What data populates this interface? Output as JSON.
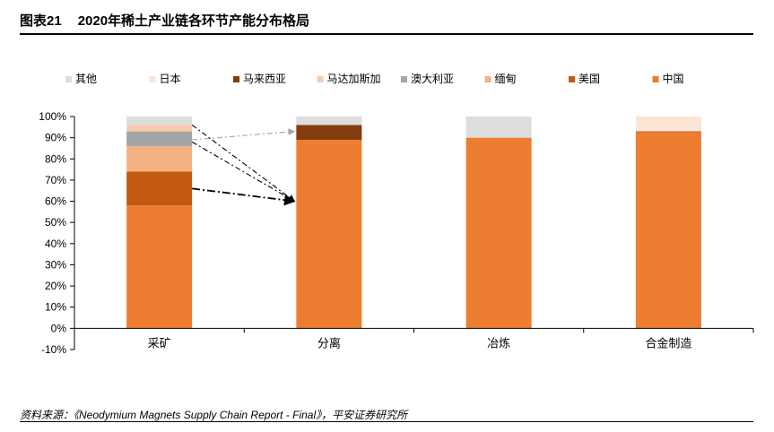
{
  "figure": {
    "label": "图表21",
    "title": "2020年稀土产业链各环节产能分布格局",
    "source": "资料来源：《Neodymium Magnets Supply Chain Report - Final》，平安证券研究所"
  },
  "chart_data": {
    "type": "bar",
    "stacked": true,
    "categories": [
      "采矿",
      "分离",
      "冶炼",
      "合金制造"
    ],
    "ylim": [
      -10,
      100
    ],
    "yticks": [
      -10,
      0,
      10,
      20,
      30,
      40,
      50,
      60,
      70,
      80,
      90,
      100
    ],
    "ytick_suffix": "%",
    "legend_position": "top",
    "grid": false,
    "series": [
      {
        "name": "中国",
        "color": "#ED7D31",
        "values": [
          58,
          89,
          90,
          92.5
        ]
      },
      {
        "name": "美国",
        "color": "#C55A11",
        "values": [
          16,
          0,
          0,
          0.5
        ]
      },
      {
        "name": "缅甸",
        "color": "#F4B183",
        "values": [
          12,
          0,
          0,
          0
        ]
      },
      {
        "name": "澳大利亚",
        "color": "#A5A5A5",
        "values": [
          7,
          0,
          0,
          0
        ]
      },
      {
        "name": "马达加斯加",
        "color": "#F8CBAD",
        "values": [
          3,
          0,
          0,
          0
        ]
      },
      {
        "name": "马来西亚",
        "color": "#843C0C",
        "values": [
          0,
          7,
          0,
          0
        ]
      },
      {
        "name": "日本",
        "color": "#FBE5D6",
        "values": [
          0,
          0,
          0,
          7
        ]
      },
      {
        "name": "其他",
        "color": "#DDDDDD",
        "values": [
          4,
          4,
          10,
          0
        ]
      }
    ],
    "legend_order": [
      "其他",
      "日本",
      "马来西亚",
      "马达加斯加",
      "澳大利亚",
      "缅甸",
      "美国",
      "中国"
    ],
    "annotations": [
      {
        "type": "arrow",
        "from_category": "采矿",
        "from_value": 89,
        "to_category": "分离",
        "to_value": 93,
        "color": "#A5A5A5",
        "style": "dash-dot"
      },
      {
        "type": "arrow",
        "from_category": "采矿",
        "from_value": 96,
        "to_category": "分离",
        "to_value": 60,
        "color": "#000000",
        "style": "dash-dot"
      },
      {
        "type": "arrow",
        "from_category": "采矿",
        "from_value": 88,
        "to_category": "分离",
        "to_value": 60,
        "color": "#000000",
        "style": "dash-dot"
      },
      {
        "type": "arrow",
        "from_category": "采矿",
        "from_value": 66,
        "to_category": "分离",
        "to_value": 60,
        "color": "#000000",
        "style": "dash-dot-bold"
      }
    ]
  }
}
